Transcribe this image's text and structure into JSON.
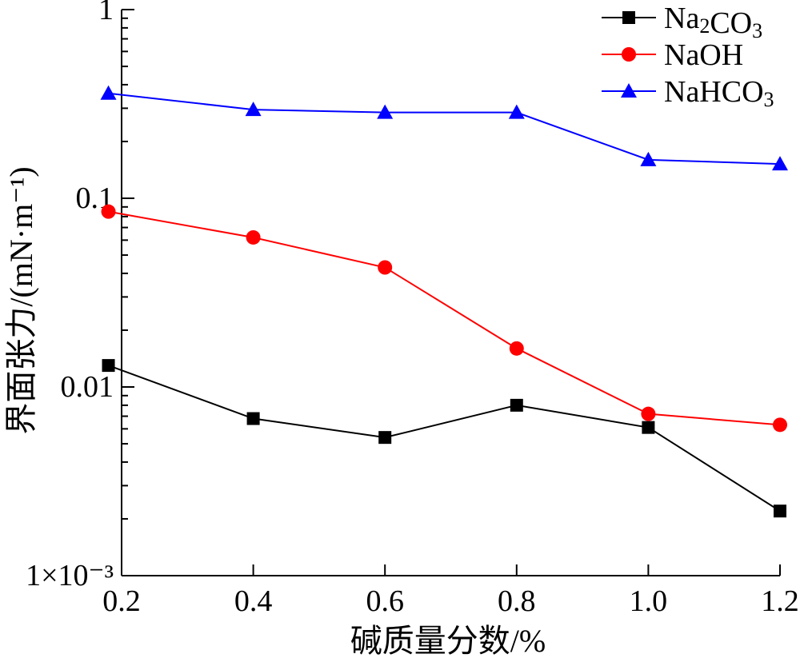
{
  "chart_data": {
    "type": "line",
    "xlabel": "碱质量分数/%",
    "ylabel": "界面张力/(mN·m⁻¹)",
    "x_tick_labels": [
      "0.2",
      "0.4",
      "0.6",
      "0.8",
      "1.0",
      "1.2"
    ],
    "y_tick_labels": [
      {
        "value": 1,
        "label": "1"
      },
      {
        "value": 0.1,
        "label": "0.1"
      },
      {
        "value": 0.01,
        "label": "0.01"
      },
      {
        "value": 0.001,
        "label": "1×10⁻³"
      }
    ],
    "xlim": [
      0.18,
      1.2
    ],
    "ylim": [
      0.001,
      1
    ],
    "y_scale": "log",
    "grid": false,
    "legend_position": "top-right",
    "x": [
      0.18,
      0.4,
      0.6,
      0.8,
      1.0,
      1.2
    ],
    "series": [
      {
        "name": "Na2CO3",
        "legend": {
          "pre": "Na",
          "sub1": "2",
          "mid": "CO",
          "sub2": "3"
        },
        "color": "#000000",
        "marker": "square",
        "values": [
          0.013,
          0.0068,
          0.0054,
          0.008,
          0.0061,
          0.0022
        ]
      },
      {
        "name": "NaOH",
        "legend": {
          "pre": "NaOH",
          "sub1": "",
          "mid": "",
          "sub2": ""
        },
        "color": "#ff0000",
        "marker": "circle",
        "values": [
          0.085,
          0.062,
          0.043,
          0.016,
          0.0072,
          0.0063
        ]
      },
      {
        "name": "NaHCO3",
        "legend": {
          "pre": "NaHCO",
          "sub1": "",
          "mid": "",
          "sub2": "3"
        },
        "color": "#0000ff",
        "marker": "triangle",
        "values": [
          0.36,
          0.295,
          0.285,
          0.285,
          0.16,
          0.152
        ]
      }
    ]
  }
}
